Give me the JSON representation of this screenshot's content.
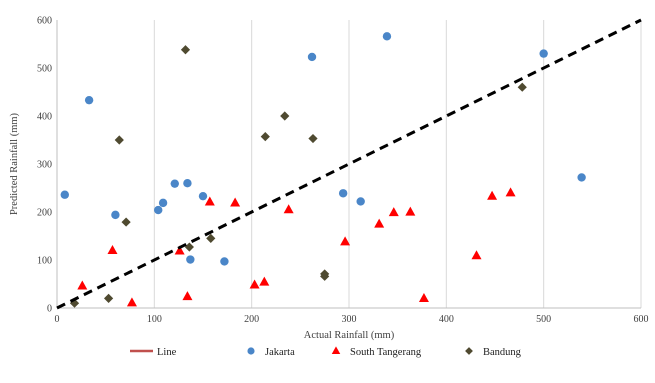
{
  "chart_data": {
    "type": "scatter",
    "title": "",
    "xlabel": "Actual Rainfall (mm)",
    "ylabel": "Predicted Rainfall (mm)",
    "xlim": [
      0,
      600
    ],
    "ylim": [
      0,
      600
    ],
    "x_ticks": [
      0,
      100,
      200,
      300,
      400,
      500,
      600
    ],
    "y_ticks": [
      0,
      100,
      200,
      300,
      400,
      500,
      600
    ],
    "grid": "vertical",
    "legend_position": "bottom",
    "line": {
      "name": "Line",
      "x": [
        0,
        600
      ],
      "y": [
        0,
        600
      ],
      "color": "#000000",
      "legend_color": "#c0504d",
      "style": "dashed"
    },
    "series": [
      {
        "name": "Jakarta",
        "marker": "circle",
        "color": "#4a86c8",
        "points": [
          [
            8,
            236
          ],
          [
            33,
            433
          ],
          [
            60,
            194
          ],
          [
            104,
            204
          ],
          [
            109,
            219
          ],
          [
            121,
            259
          ],
          [
            134,
            260
          ],
          [
            137,
            101
          ],
          [
            150,
            233
          ],
          [
            172,
            97
          ],
          [
            262,
            523
          ],
          [
            294,
            239
          ],
          [
            312,
            222
          ],
          [
            339,
            566
          ],
          [
            500,
            530
          ],
          [
            539,
            272
          ]
        ]
      },
      {
        "name": "South Tangerang",
        "marker": "triangle",
        "color": "#ff0000",
        "points": [
          [
            26,
            46
          ],
          [
            57,
            120
          ],
          [
            77,
            11
          ],
          [
            126,
            119
          ],
          [
            134,
            24
          ],
          [
            157,
            221
          ],
          [
            183,
            219
          ],
          [
            203,
            48
          ],
          [
            213,
            54
          ],
          [
            238,
            205
          ],
          [
            296,
            138
          ],
          [
            331,
            175
          ],
          [
            346,
            199
          ],
          [
            363,
            200
          ],
          [
            377,
            20
          ],
          [
            431,
            109
          ],
          [
            447,
            233
          ],
          [
            466,
            240
          ]
        ]
      },
      {
        "name": "Bandung",
        "marker": "diamond",
        "color": "#4f4a30",
        "points": [
          [
            18,
            10
          ],
          [
            53,
            20
          ],
          [
            64,
            350
          ],
          [
            71,
            179
          ],
          [
            132,
            538
          ],
          [
            136,
            127
          ],
          [
            158,
            145
          ],
          [
            214,
            357
          ],
          [
            234,
            400
          ],
          [
            263,
            353
          ],
          [
            275,
            66
          ],
          [
            275,
            71
          ],
          [
            478,
            460
          ]
        ]
      }
    ]
  }
}
